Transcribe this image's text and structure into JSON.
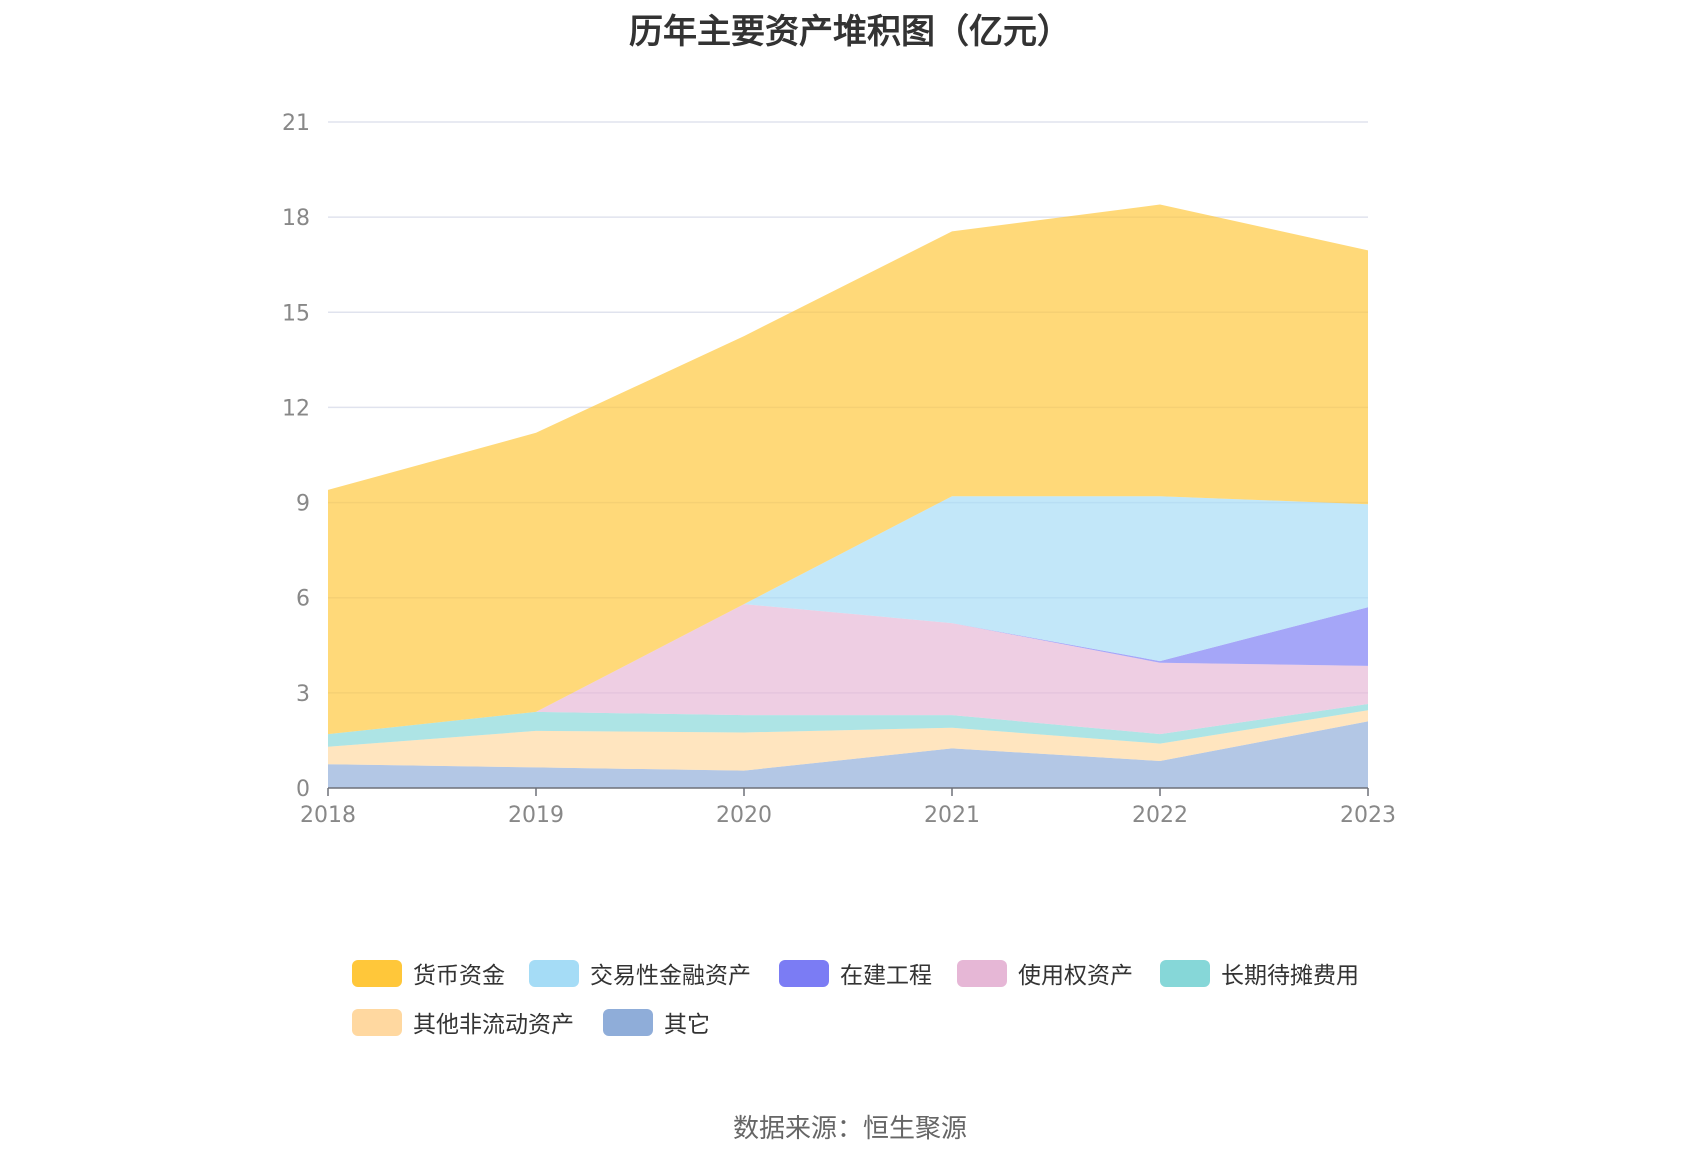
{
  "chart_data": {
    "type": "area",
    "stacked": true,
    "title": "历年主要资产堆积图（亿元）",
    "x": [
      "2018",
      "2019",
      "2020",
      "2021",
      "2022",
      "2023"
    ],
    "ylim": [
      0,
      21
    ],
    "yticks": [
      "0",
      "3",
      "6",
      "9",
      "12",
      "15",
      "18",
      "21"
    ],
    "grid": true,
    "legend_position": "bottom",
    "series": [
      {
        "name": "其它",
        "color": "#8fadd9",
        "values": [
          0.75,
          0.65,
          0.55,
          1.25,
          0.85,
          2.1
        ]
      },
      {
        "name": "其他非流动资产",
        "color": "#ffd8a0",
        "values": [
          0.55,
          1.15,
          1.2,
          0.65,
          0.55,
          0.35
        ]
      },
      {
        "name": "长期待摊费用",
        "color": "#86d7d8",
        "values": [
          0.4,
          0.6,
          0.55,
          0.4,
          0.3,
          0.2
        ]
      },
      {
        "name": "使用权资产",
        "color": "#e6b7d6",
        "values": [
          0,
          0,
          3.5,
          2.9,
          2.25,
          1.2
        ]
      },
      {
        "name": "在建工程",
        "color": "#7b7cf4",
        "values": [
          0,
          0,
          0,
          0,
          0.05,
          1.85
        ]
      },
      {
        "name": "交易性金融资产",
        "color": "#a5dcf6",
        "values": [
          0,
          0,
          0,
          4.0,
          5.2,
          3.25
        ]
      },
      {
        "name": "货币资金",
        "color": "#ffc73a",
        "values": [
          7.7,
          8.8,
          8.45,
          8.35,
          9.2,
          8.0
        ]
      }
    ]
  },
  "legend": {
    "items": [
      {
        "label": "货币资金",
        "color": "#ffc73a"
      },
      {
        "label": "交易性金融资产",
        "color": "#a5dcf6"
      },
      {
        "label": "在建工程",
        "color": "#7b7cf4"
      },
      {
        "label": "使用权资产",
        "color": "#e6b7d6"
      },
      {
        "label": "长期待摊费用",
        "color": "#86d7d8"
      },
      {
        "label": "其他非流动资产",
        "color": "#ffd8a0"
      },
      {
        "label": "其它",
        "color": "#8fadd9"
      }
    ]
  },
  "source": "数据来源：恒生聚源"
}
